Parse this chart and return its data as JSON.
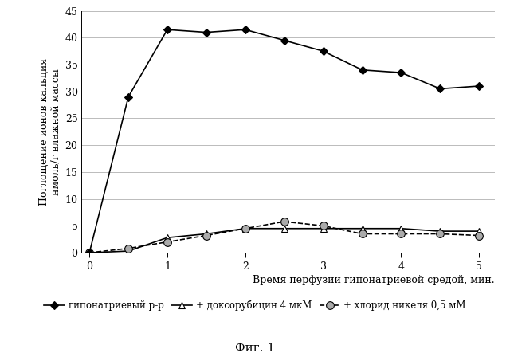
{
  "series1": {
    "label": "гипонатриевый р-р",
    "x": [
      0,
      0.5,
      1,
      1.5,
      2,
      2.5,
      3,
      3.5,
      4,
      4.5,
      5
    ],
    "y": [
      0,
      29,
      41.5,
      41,
      41.5,
      39.5,
      37.5,
      34,
      33.5,
      30.5,
      31
    ],
    "color": "#000000",
    "linestyle": "-",
    "marker": "D",
    "markersize": 5,
    "linewidth": 1.2,
    "markerfacecolor": "#000000"
  },
  "series2": {
    "label": "+ доксорубицин 4 мкМ",
    "x": [
      0,
      0.5,
      1,
      1.5,
      2,
      2.5,
      3,
      3.5,
      4,
      4.5,
      5
    ],
    "y": [
      0,
      0.3,
      2.8,
      3.5,
      4.5,
      4.5,
      4.5,
      4.5,
      4.5,
      4.0,
      4.0
    ],
    "color": "#000000",
    "linestyle": "-",
    "marker": "^",
    "markersize": 6,
    "linewidth": 1.2,
    "markerfacecolor": "#ffffff"
  },
  "series3": {
    "label": "+ хлорид никеля 0,5 мМ",
    "x": [
      0,
      0.5,
      1,
      1.5,
      2,
      2.5,
      3,
      3.5,
      4,
      4.5,
      5
    ],
    "y": [
      0,
      0.8,
      2.0,
      3.2,
      4.5,
      5.8,
      5.0,
      3.5,
      3.5,
      3.5,
      3.2
    ],
    "color": "#000000",
    "linestyle": "--",
    "marker": "o",
    "markersize": 7,
    "linewidth": 1.2,
    "markerfacecolor": "#aaaaaa"
  },
  "xlabel": "Время перфузии гипонатриевой средой, мин.",
  "ylabel": "Поглощение ионов кальция\nнмоль/г влажной массы",
  "xlim": [
    -0.1,
    5.2
  ],
  "ylim": [
    0,
    45
  ],
  "yticks": [
    0,
    5,
    10,
    15,
    20,
    25,
    30,
    35,
    40,
    45
  ],
  "xticks": [
    0,
    1,
    2,
    3,
    4,
    5
  ],
  "xticklabels": [
    "0",
    "1",
    "2",
    "3",
    "4",
    "5"
  ],
  "caption": "Фиг. 1",
  "background_color": "#ffffff",
  "grid_color": "#bbbbbb"
}
